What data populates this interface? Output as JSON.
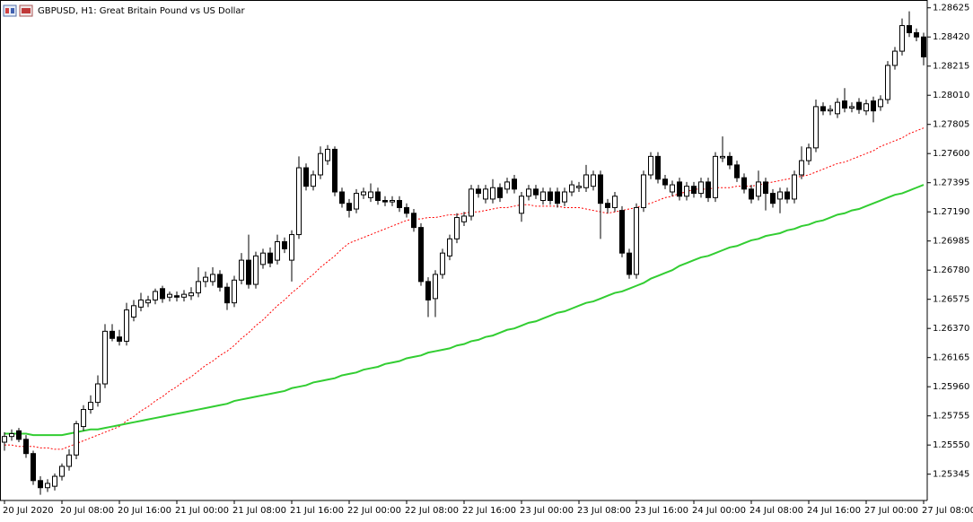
{
  "chart_data": {
    "type": "candlestick",
    "title": "GBPUSD, H1:  Great Britain Pound vs US Dollar",
    "up_color": "#ffffff",
    "down_color": "#000000",
    "grid": false,
    "ylim": [
      1.2516,
      1.2868
    ],
    "yticks": [
      1.28625,
      {
        "value": 1.2842,
        "label": "1.28420"
      },
      1.28215,
      {
        "value": 1.2801,
        "label": "1.28010"
      },
      1.27805,
      {
        "value": 1.276,
        "label": "1.27600"
      },
      1.27395,
      {
        "value": 1.2719,
        "label": "1.27190"
      },
      1.26985,
      {
        "value": 1.2678,
        "label": "1.26780"
      },
      1.26575,
      {
        "value": 1.2637,
        "label": "1.26370"
      },
      1.26165,
      {
        "value": 1.2596,
        "label": "1.25960"
      },
      1.25755,
      {
        "value": 1.2555,
        "label": "1.25550"
      },
      1.25345
    ],
    "categories": [
      "20 Jul 2020",
      null,
      null,
      null,
      null,
      null,
      null,
      null,
      "20 Jul 08:00",
      null,
      null,
      null,
      null,
      null,
      null,
      null,
      "20 Jul 16:00",
      null,
      null,
      null,
      null,
      null,
      null,
      null,
      "21 Jul 00:00",
      null,
      null,
      null,
      null,
      null,
      null,
      null,
      "21 Jul 08:00",
      null,
      null,
      null,
      null,
      null,
      null,
      null,
      "21 Jul 16:00",
      null,
      null,
      null,
      null,
      null,
      null,
      null,
      "22 Jul 00:00",
      null,
      null,
      null,
      null,
      null,
      null,
      null,
      "22 Jul 08:00",
      null,
      null,
      null,
      null,
      null,
      null,
      null,
      "22 Jul 16:00",
      null,
      null,
      null,
      null,
      null,
      null,
      null,
      "23 Jul 00:00",
      null,
      null,
      null,
      null,
      null,
      null,
      null,
      "23 Jul 08:00",
      null,
      null,
      null,
      null,
      null,
      null,
      null,
      "23 Jul 16:00",
      null,
      null,
      null,
      null,
      null,
      null,
      null,
      "24 Jul 00:00",
      null,
      null,
      null,
      null,
      null,
      null,
      null,
      "24 Jul 08:00",
      null,
      null,
      null,
      null,
      null,
      null,
      null,
      "24 Jul 16:00",
      null,
      null,
      null,
      null,
      null,
      null,
      null,
      "27 Jul 00:00",
      null,
      null,
      null,
      null,
      null,
      null,
      null,
      "27 Jul 08:00"
    ],
    "ohlc": [
      [
        1.2557,
        1.2564,
        1.2551,
        1.2561
      ],
      [
        1.2561,
        1.2566,
        1.2558,
        1.2563
      ],
      [
        1.2565,
        1.2567,
        1.2557,
        1.2559
      ],
      [
        1.2559,
        1.2562,
        1.2546,
        1.2549
      ],
      [
        1.2549,
        1.2551,
        1.2527,
        1.253
      ],
      [
        1.253,
        1.2533,
        1.252,
        1.2525
      ],
      [
        1.2525,
        1.2531,
        1.2522,
        1.2528
      ],
      [
        1.2526,
        1.2535,
        1.2523,
        1.2533
      ],
      [
        1.2533,
        1.2542,
        1.253,
        1.254
      ],
      [
        1.254,
        1.2552,
        1.2537,
        1.2548
      ],
      [
        1.2548,
        1.2572,
        1.2545,
        1.257
      ],
      [
        1.2568,
        1.2583,
        1.2565,
        1.258
      ],
      [
        1.258,
        1.259,
        1.2577,
        1.2585
      ],
      [
        1.2585,
        1.2604,
        1.2582,
        1.2598
      ],
      [
        1.2598,
        1.264,
        1.2595,
        1.2635
      ],
      [
        1.2635,
        1.264,
        1.2628,
        1.263
      ],
      [
        1.2631,
        1.2636,
        1.2625,
        1.2628
      ],
      [
        1.2628,
        1.2655,
        1.2625,
        1.265
      ],
      [
        1.2645,
        1.2657,
        1.2642,
        1.2653
      ],
      [
        1.2652,
        1.2662,
        1.2649,
        1.2657
      ],
      [
        1.2655,
        1.266,
        1.2652,
        1.2657
      ],
      [
        1.2657,
        1.2665,
        1.2654,
        1.2663
      ],
      [
        1.2665,
        1.2667,
        1.2655,
        1.2658
      ],
      [
        1.2659,
        1.2663,
        1.2656,
        1.2661
      ],
      [
        1.266,
        1.2663,
        1.2656,
        1.2659
      ],
      [
        1.2659,
        1.2664,
        1.2656,
        1.2661
      ],
      [
        1.266,
        1.2666,
        1.2657,
        1.2662
      ],
      [
        1.2662,
        1.268,
        1.2659,
        1.267
      ],
      [
        1.267,
        1.2677,
        1.2666,
        1.2673
      ],
      [
        1.267,
        1.268,
        1.2667,
        1.2675
      ],
      [
        1.2675,
        1.2678,
        1.2663,
        1.2666
      ],
      [
        1.2666,
        1.2669,
        1.265,
        1.2655
      ],
      [
        1.2655,
        1.2674,
        1.2652,
        1.2671
      ],
      [
        1.2671,
        1.269,
        1.2668,
        1.2685
      ],
      [
        1.2685,
        1.2703,
        1.2665,
        1.2668
      ],
      [
        1.2668,
        1.2691,
        1.2665,
        1.2688
      ],
      [
        1.2682,
        1.2693,
        1.2679,
        1.269
      ],
      [
        1.269,
        1.2694,
        1.268,
        1.2683
      ],
      [
        1.2685,
        1.2703,
        1.2682,
        1.2698
      ],
      [
        1.2698,
        1.2701,
        1.269,
        1.2693
      ],
      [
        1.2685,
        1.2706,
        1.267,
        1.2703
      ],
      [
        1.2703,
        1.2758,
        1.27,
        1.275
      ],
      [
        1.275,
        1.2753,
        1.2734,
        1.2737
      ],
      [
        1.2737,
        1.2748,
        1.2734,
        1.2745
      ],
      [
        1.2745,
        1.2765,
        1.2742,
        1.276
      ],
      [
        1.2755,
        1.2766,
        1.2752,
        1.2763
      ],
      [
        1.2763,
        1.2765,
        1.273,
        1.2733
      ],
      [
        1.2733,
        1.2736,
        1.2722,
        1.2725
      ],
      [
        1.2725,
        1.2728,
        1.2715,
        1.272
      ],
      [
        1.2721,
        1.2735,
        1.2718,
        1.2732
      ],
      [
        1.2731,
        1.2736,
        1.2728,
        1.2733
      ],
      [
        1.2729,
        1.2739,
        1.2726,
        1.2733
      ],
      [
        1.2733,
        1.2736,
        1.2724,
        1.2727
      ],
      [
        1.2727,
        1.273,
        1.2723,
        1.2726
      ],
      [
        1.2726,
        1.273,
        1.2723,
        1.2727
      ],
      [
        1.2727,
        1.273,
        1.2719,
        1.2722
      ],
      [
        1.2722,
        1.2725,
        1.2715,
        1.2718
      ],
      [
        1.2718,
        1.2721,
        1.2705,
        1.2708
      ],
      [
        1.2708,
        1.2711,
        1.2667,
        1.267
      ],
      [
        1.267,
        1.2673,
        1.2645,
        1.2657
      ],
      [
        1.2658,
        1.2678,
        1.2645,
        1.2675
      ],
      [
        1.2675,
        1.2693,
        1.2672,
        1.269
      ],
      [
        1.2688,
        1.2703,
        1.2685,
        1.27
      ],
      [
        1.27,
        1.2718,
        1.2697,
        1.2715
      ],
      [
        1.2712,
        1.2719,
        1.2709,
        1.2716
      ],
      [
        1.2716,
        1.2738,
        1.2713,
        1.2735
      ],
      [
        1.2735,
        1.2738,
        1.2729,
        1.2732
      ],
      [
        1.2728,
        1.2738,
        1.2725,
        1.2735
      ],
      [
        1.2728,
        1.2742,
        1.2725,
        1.2736
      ],
      [
        1.2736,
        1.2739,
        1.2726,
        1.2729
      ],
      [
        1.2735,
        1.2743,
        1.2732,
        1.274
      ],
      [
        1.2742,
        1.2745,
        1.2732,
        1.2735
      ],
      [
        1.2718,
        1.2733,
        1.2712,
        1.273
      ],
      [
        1.273,
        1.2738,
        1.2727,
        1.2735
      ],
      [
        1.2735,
        1.2738,
        1.2728,
        1.2731
      ],
      [
        1.2727,
        1.2736,
        1.2724,
        1.2733
      ],
      [
        1.2733,
        1.2736,
        1.2724,
        1.2727
      ],
      [
        1.2733,
        1.2736,
        1.2722,
        1.2725
      ],
      [
        1.2726,
        1.2736,
        1.2723,
        1.2733
      ],
      [
        1.2733,
        1.2741,
        1.273,
        1.2738
      ],
      [
        1.2736,
        1.274,
        1.2733,
        1.2737
      ],
      [
        1.2736,
        1.2752,
        1.2733,
        1.2745
      ],
      [
        1.2737,
        1.2748,
        1.2734,
        1.2745
      ],
      [
        1.2745,
        1.2748,
        1.27,
        1.2725
      ],
      [
        1.2725,
        1.2728,
        1.2718,
        1.2722
      ],
      [
        1.2722,
        1.2733,
        1.2719,
        1.273
      ],
      [
        1.272,
        1.2723,
        1.2687,
        1.269
      ],
      [
        1.269,
        1.2693,
        1.2672,
        1.2675
      ],
      [
        1.2675,
        1.2725,
        1.2672,
        1.2722
      ],
      [
        1.2722,
        1.2748,
        1.2719,
        1.2745
      ],
      [
        1.2745,
        1.2761,
        1.2742,
        1.2758
      ],
      [
        1.2758,
        1.2761,
        1.2739,
        1.2742
      ],
      [
        1.2742,
        1.2745,
        1.2735,
        1.2738
      ],
      [
        1.2733,
        1.2741,
        1.273,
        1.2738
      ],
      [
        1.274,
        1.2743,
        1.2727,
        1.273
      ],
      [
        1.273,
        1.274,
        1.2727,
        1.2737
      ],
      [
        1.2737,
        1.274,
        1.2729,
        1.2732
      ],
      [
        1.2732,
        1.2743,
        1.2729,
        1.274
      ],
      [
        1.274,
        1.2743,
        1.2726,
        1.2729
      ],
      [
        1.2729,
        1.2761,
        1.2726,
        1.2758
      ],
      [
        1.2757,
        1.2772,
        1.2754,
        1.2758
      ],
      [
        1.2758,
        1.2761,
        1.2749,
        1.2752
      ],
      [
        1.2752,
        1.2755,
        1.274,
        1.2743
      ],
      [
        1.2743,
        1.2746,
        1.2732,
        1.2735
      ],
      [
        1.2735,
        1.2738,
        1.2725,
        1.2728
      ],
      [
        1.273,
        1.2748,
        1.2727,
        1.274
      ],
      [
        1.274,
        1.2743,
        1.272,
        1.2732
      ],
      [
        1.2732,
        1.2735,
        1.2722,
        1.2725
      ],
      [
        1.2728,
        1.2736,
        1.2718,
        1.2733
      ],
      [
        1.2733,
        1.2736,
        1.2725,
        1.2728
      ],
      [
        1.2728,
        1.2748,
        1.2725,
        1.2745
      ],
      [
        1.2745,
        1.2765,
        1.2742,
        1.2755
      ],
      [
        1.2755,
        1.2767,
        1.2752,
        1.2764
      ],
      [
        1.2764,
        1.2798,
        1.2761,
        1.2793
      ],
      [
        1.2793,
        1.2796,
        1.2787,
        1.279
      ],
      [
        1.279,
        1.2794,
        1.2787,
        1.2791
      ],
      [
        1.2788,
        1.2799,
        1.2785,
        1.2796
      ],
      [
        1.2797,
        1.2806,
        1.2789,
        1.2792
      ],
      [
        1.2792,
        1.2796,
        1.2789,
        1.2793
      ],
      [
        1.2796,
        1.2799,
        1.2788,
        1.2791
      ],
      [
        1.279,
        1.2798,
        1.2787,
        1.2795
      ],
      [
        1.2797,
        1.28,
        1.2782,
        1.279
      ],
      [
        1.2793,
        1.2801,
        1.279,
        1.2798
      ],
      [
        1.2798,
        1.2825,
        1.2795,
        1.2822
      ],
      [
        1.2822,
        1.2835,
        1.2819,
        1.2832
      ],
      [
        1.2832,
        1.2855,
        1.2829,
        1.285
      ],
      [
        1.285,
        1.286,
        1.2842,
        1.2845
      ],
      [
        1.2845,
        1.2848,
        1.2839,
        1.2842
      ],
      [
        1.2842,
        1.2845,
        1.2822,
        1.2828
      ]
    ],
    "moving_averages": [
      {
        "color": "#ff0000",
        "dashed": true,
        "values": [
          1.2555,
          1.2555,
          1.2554,
          1.2554,
          1.2554,
          1.2553,
          1.2553,
          1.2552,
          1.2552,
          1.2554,
          1.2556,
          1.2558,
          1.256,
          1.2562,
          1.2564,
          1.2566,
          1.2568,
          1.2572,
          1.2575,
          1.2579,
          1.2582,
          1.2586,
          1.2589,
          1.2593,
          1.2596,
          1.26,
          1.2603,
          1.2607,
          1.2611,
          1.2614,
          1.2618,
          1.2621,
          1.2625,
          1.263,
          1.2634,
          1.2639,
          1.2643,
          1.2648,
          1.2653,
          1.2657,
          1.2662,
          1.2666,
          1.2671,
          1.2675,
          1.268,
          1.2684,
          1.2688,
          1.2693,
          1.2697,
          1.2699,
          1.2701,
          1.2703,
          1.2705,
          1.2707,
          1.2709,
          1.2711,
          1.2713,
          1.2714,
          1.2714,
          1.2715,
          1.2715,
          1.2716,
          1.2717,
          1.2717,
          1.2718,
          1.2719,
          1.2719,
          1.272,
          1.2721,
          1.2722,
          1.2722,
          1.2723,
          1.2724,
          1.2724,
          1.2723,
          1.2723,
          1.2723,
          1.2723,
          1.2722,
          1.2722,
          1.2722,
          1.2721,
          1.272,
          1.2719,
          1.2718,
          1.2719,
          1.272,
          1.2721,
          1.2722,
          1.2724,
          1.2725,
          1.2727,
          1.2729,
          1.273,
          1.2732,
          1.2733,
          1.2735,
          1.2735,
          1.2735,
          1.2736,
          1.2736,
          1.2736,
          1.2737,
          1.2737,
          1.2737,
          1.2738,
          1.2739,
          1.274,
          1.2741,
          1.2742,
          1.2743,
          1.2744,
          1.2745,
          1.2747,
          1.2749,
          1.2751,
          1.2753,
          1.2754,
          1.2756,
          1.2758,
          1.276,
          1.2762,
          1.2765,
          1.2767,
          1.2769,
          1.2771,
          1.2774,
          1.2776,
          1.2778
        ]
      },
      {
        "color": "#32cd32",
        "dashed": false,
        "values": [
          1.2563,
          1.2563,
          1.2563,
          1.2563,
          1.2562,
          1.2562,
          1.2562,
          1.2562,
          1.2562,
          1.2563,
          1.2564,
          1.2565,
          1.2566,
          1.2566,
          1.2567,
          1.2568,
          1.2569,
          1.257,
          1.2571,
          1.2572,
          1.2573,
          1.2574,
          1.2575,
          1.2576,
          1.2577,
          1.2578,
          1.2579,
          1.258,
          1.2581,
          1.2582,
          1.2583,
          1.2584,
          1.2586,
          1.2587,
          1.2588,
          1.2589,
          1.259,
          1.2591,
          1.2592,
          1.2593,
          1.2595,
          1.2596,
          1.2597,
          1.2599,
          1.26,
          1.2601,
          1.2602,
          1.2604,
          1.2605,
          1.2606,
          1.2608,
          1.2609,
          1.261,
          1.2612,
          1.2613,
          1.2614,
          1.2616,
          1.2617,
          1.2618,
          1.262,
          1.2621,
          1.2622,
          1.2623,
          1.2625,
          1.2626,
          1.2628,
          1.2629,
          1.2631,
          1.2632,
          1.2634,
          1.2636,
          1.2637,
          1.2639,
          1.2641,
          1.2642,
          1.2644,
          1.2646,
          1.2648,
          1.2649,
          1.2651,
          1.2653,
          1.2655,
          1.2656,
          1.2658,
          1.266,
          1.2662,
          1.2663,
          1.2665,
          1.2667,
          1.2669,
          1.2672,
          1.2674,
          1.2676,
          1.2678,
          1.2681,
          1.2683,
          1.2685,
          1.2687,
          1.2688,
          1.269,
          1.2692,
          1.2694,
          1.2695,
          1.2697,
          1.2699,
          1.27,
          1.2702,
          1.2703,
          1.2704,
          1.2706,
          1.2707,
          1.2709,
          1.271,
          1.2712,
          1.2713,
          1.2715,
          1.2717,
          1.2718,
          1.272,
          1.2721,
          1.2723,
          1.2725,
          1.2727,
          1.2729,
          1.2731,
          1.2732,
          1.2734,
          1.2736,
          1.2738
        ]
      }
    ]
  }
}
